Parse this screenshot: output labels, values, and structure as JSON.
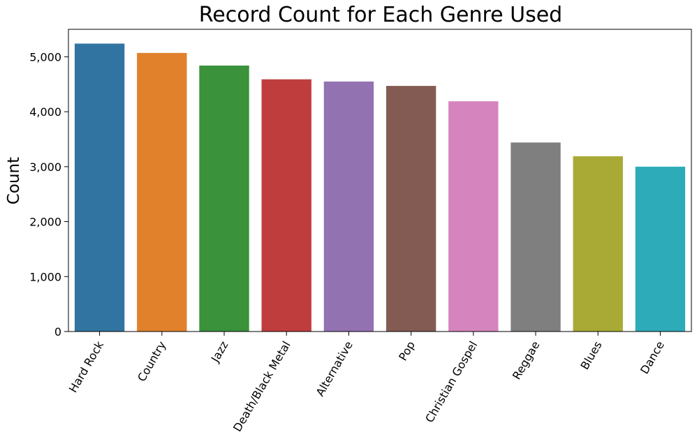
{
  "chart_data": {
    "type": "bar",
    "title": "Record Count for Each Genre Used",
    "xlabel": "",
    "ylabel": "Count",
    "categories": [
      "Hard Rock",
      "Country",
      "Jazz",
      "Death/Black Metal",
      "Alternative",
      "Pop",
      "Christian Gospel",
      "Reggae",
      "Blues",
      "Dance"
    ],
    "values": [
      5240,
      5070,
      4840,
      4590,
      4550,
      4470,
      4190,
      3440,
      3190,
      3000
    ],
    "colors": [
      "#3274a1",
      "#e1812c",
      "#3a923a",
      "#c03d3e",
      "#9372b2",
      "#845b53",
      "#d684bd",
      "#7f7f7f",
      "#a9aa35",
      "#2eabb8"
    ],
    "ylim": [
      0,
      5500
    ],
    "yticks": [
      0,
      1000,
      2000,
      3000,
      4000,
      5000
    ],
    "ytick_labels": [
      "0",
      "1,000",
      "2,000",
      "3,000",
      "4,000",
      "5,000"
    ],
    "grid": false,
    "legend": "none"
  }
}
